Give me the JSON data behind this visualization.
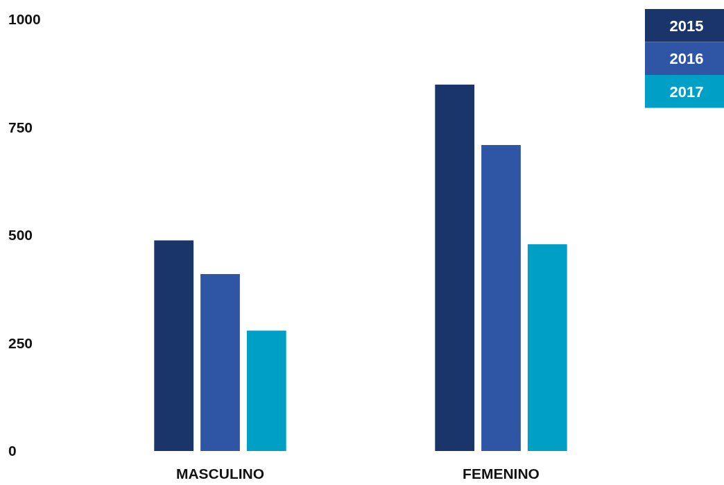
{
  "chart_data": {
    "type": "bar",
    "categories": [
      "MASCULINO",
      "FEMENINO"
    ],
    "series": [
      {
        "name": "2015",
        "color": "#1a3569",
        "values": [
          488,
          849
        ]
      },
      {
        "name": "2016",
        "color": "#2e56a5",
        "values": [
          410,
          709
        ]
      },
      {
        "name": "2017",
        "color": "#00a0c6",
        "values": [
          279,
          479
        ]
      }
    ],
    "ylim": [
      0,
      1000
    ],
    "yticks": [
      0,
      250,
      500,
      750,
      1000
    ],
    "grid": false,
    "legend": "top right"
  }
}
